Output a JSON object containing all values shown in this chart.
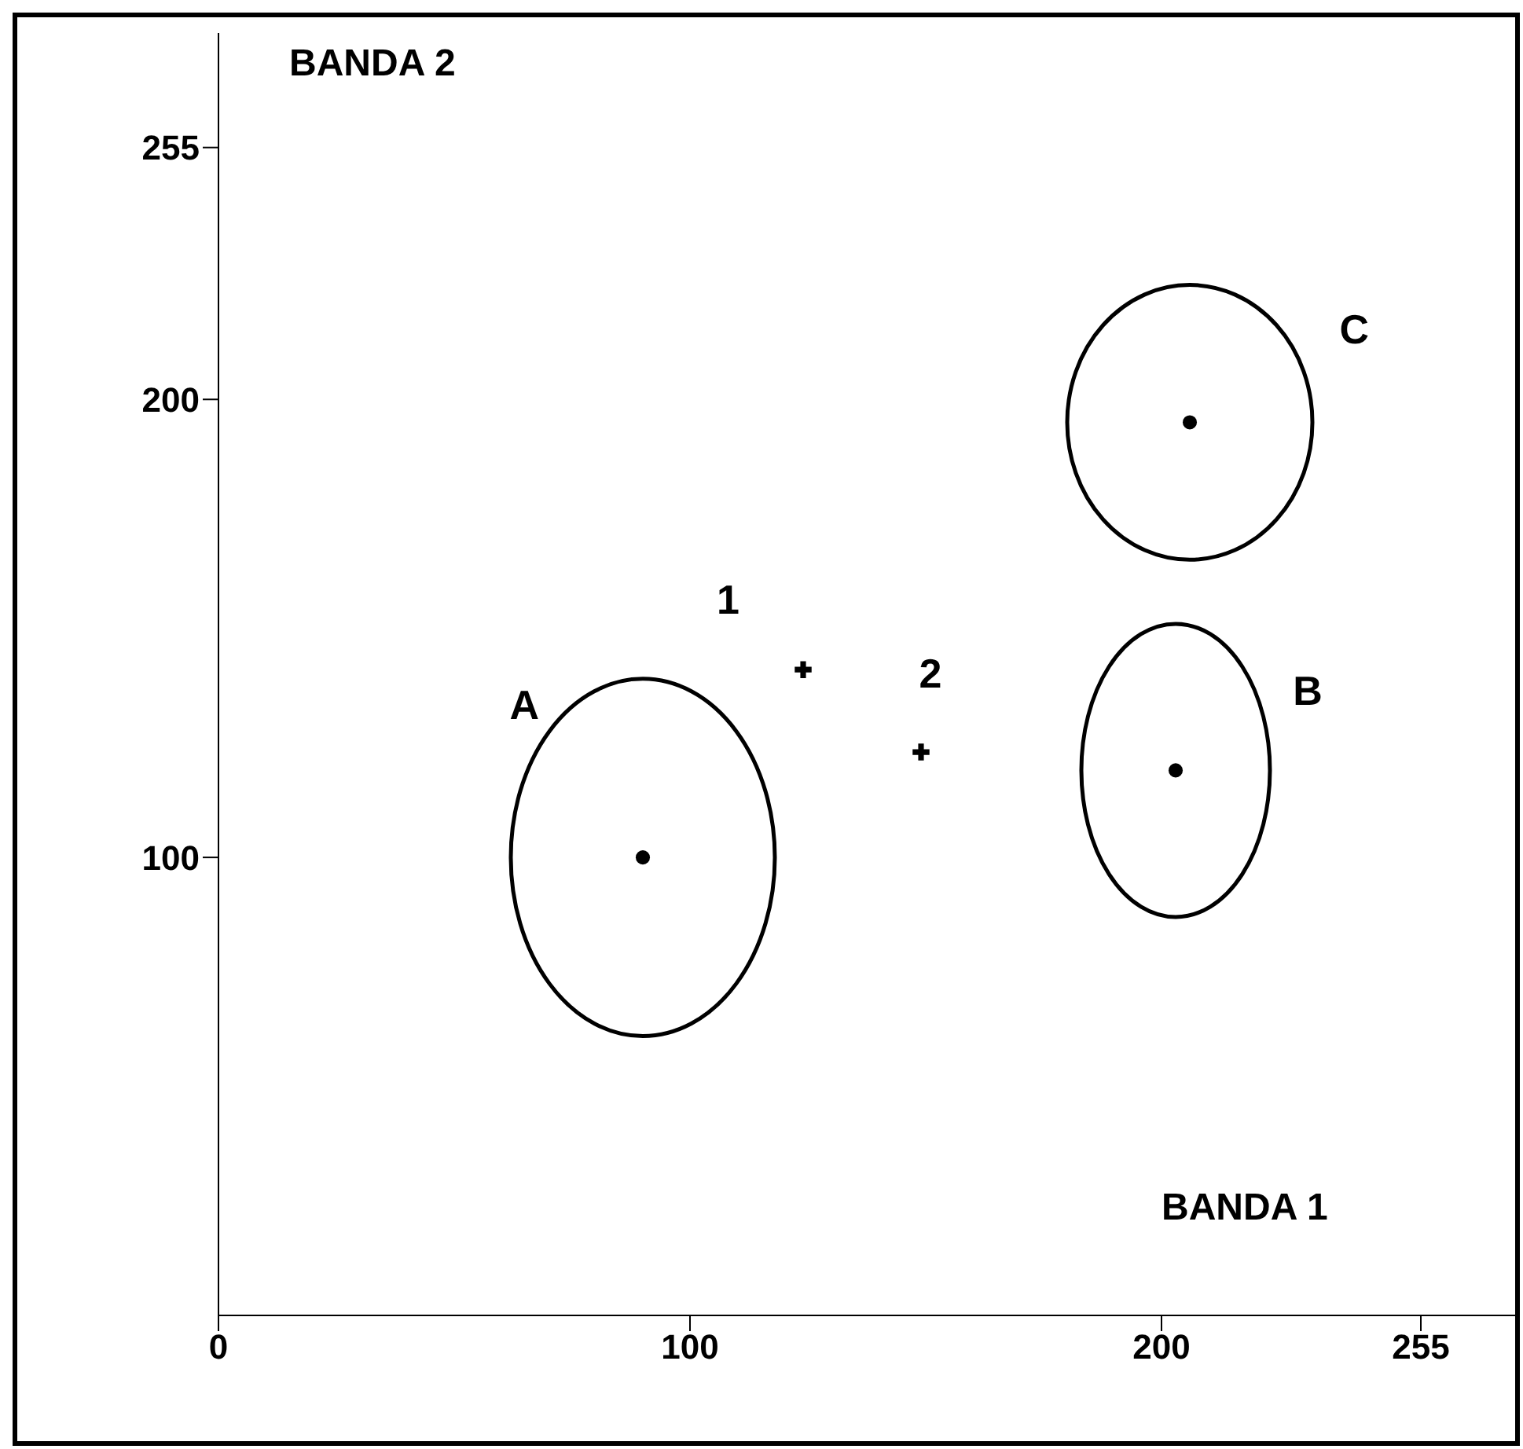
{
  "chart_data": {
    "type": "scatter",
    "xlabel": "BANDA 1",
    "ylabel": "BANDA 2",
    "xlim": [
      0,
      275
    ],
    "ylim": [
      0,
      280
    ],
    "xticks": [
      0,
      100,
      200,
      255
    ],
    "yticks": [
      100,
      200,
      255
    ],
    "grid": false,
    "series": [
      {
        "type": "scatter",
        "color": "#000000",
        "marker": "circle",
        "x": [
          90,
          203,
          206
        ],
        "values": [
          100,
          119,
          195
        ]
      },
      {
        "type": "scatter",
        "color": "#000000",
        "marker": "cross",
        "x": [
          124,
          149
        ],
        "values": [
          141,
          123
        ]
      }
    ],
    "annotations": [
      "A",
      "B",
      "C",
      "1",
      "2"
    ]
  }
}
